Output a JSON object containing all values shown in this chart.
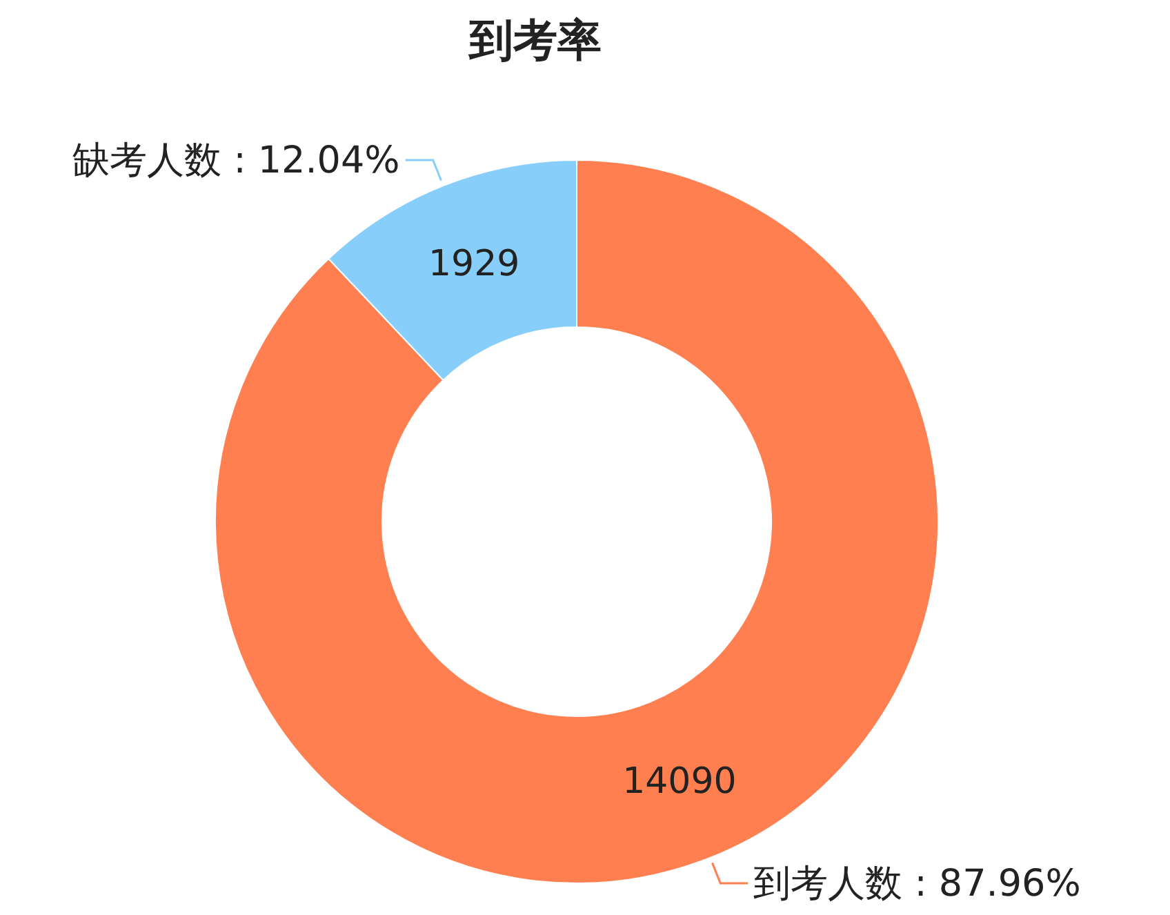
{
  "chart_data": {
    "type": "donut",
    "title": "到考率",
    "categories": [
      "到考人数 : 87.96%",
      "缺考人数 : 12.04%"
    ],
    "values": [
      14090,
      1929
    ],
    "colors": [
      "#ff7f50",
      "#87cefa"
    ],
    "data_labels": true
  }
}
